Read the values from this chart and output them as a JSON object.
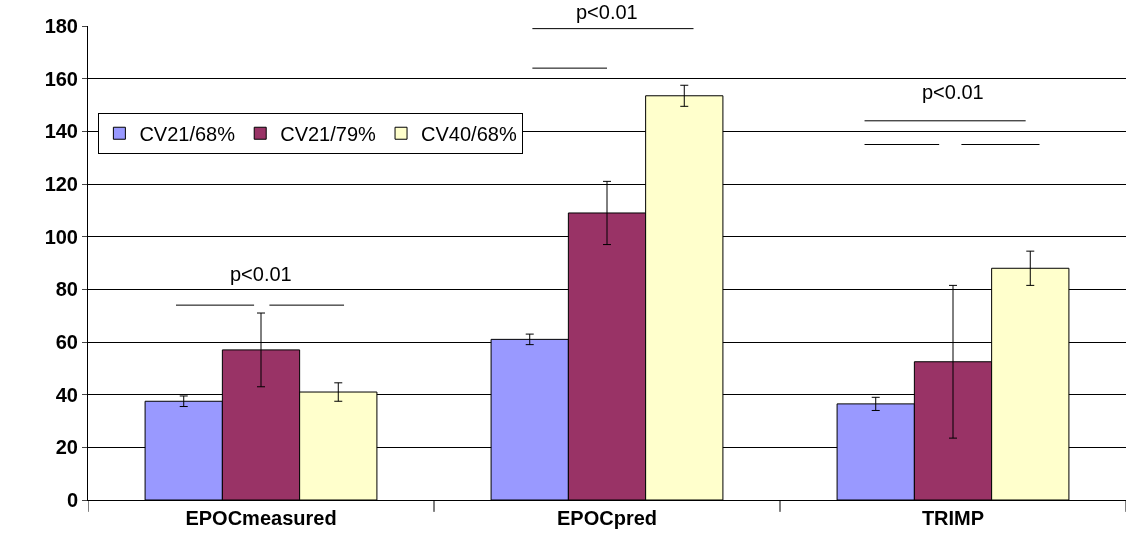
{
  "chart_data": {
    "type": "bar",
    "categories": [
      "EPOCmeasured",
      "EPOCpred",
      "TRIMP"
    ],
    "series": [
      {
        "name": "CV21/68%",
        "color": "#9999ff",
        "values": [
          37.5,
          61,
          36.5
        ],
        "errors": [
          2,
          2,
          2.5
        ]
      },
      {
        "name": "CV21/79%",
        "color": "#993366",
        "values": [
          57,
          109,
          52.5
        ],
        "errors": [
          14,
          12,
          29
        ]
      },
      {
        "name": "CV40/68%",
        "color": "#ffffcc",
        "values": [
          41,
          153.5,
          88
        ],
        "errors": [
          3.5,
          4,
          6.5
        ]
      }
    ],
    "ylim": [
      0,
      180
    ],
    "yticks": [
      0,
      20,
      40,
      60,
      80,
      100,
      120,
      140,
      160,
      180
    ],
    "grid": "y",
    "legend": "top left",
    "annotations": [
      "p<0.01",
      "p<0.01",
      "p<0.01"
    ]
  }
}
